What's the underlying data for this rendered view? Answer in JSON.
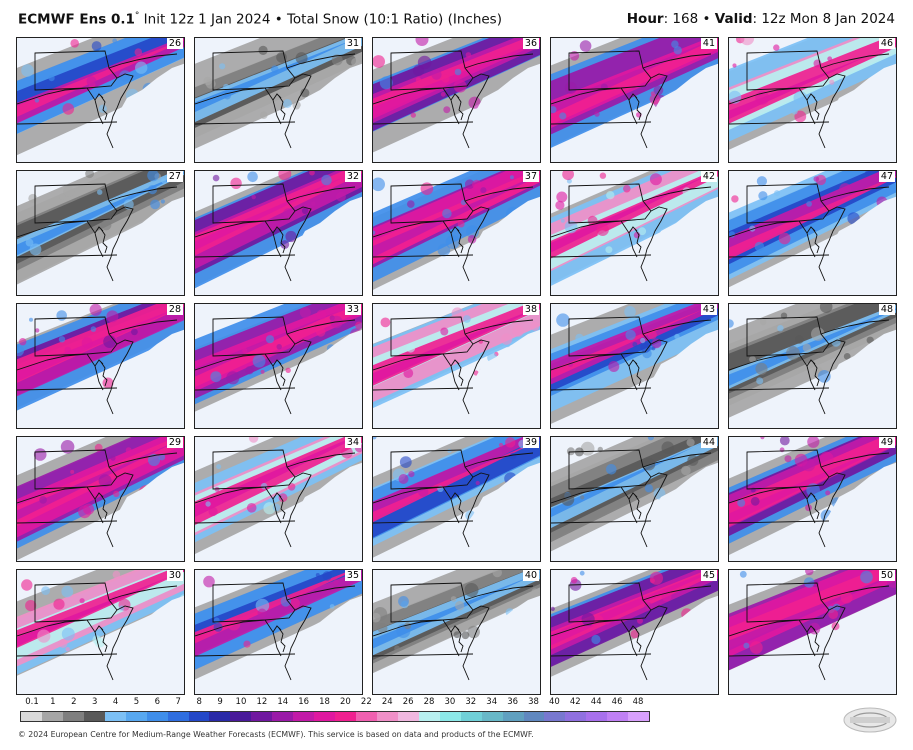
{
  "header": {
    "model": "ECMWF Ens 0.1",
    "degree": "°",
    "init": " Init 12z 1 Jan 2024 • Total Snow (10:1 Ratio) (Inches)",
    "hour_label": "Hour",
    "hour_value": ": 168 • ",
    "valid_label": "Valid",
    "valid_value": ": 12z Mon 8 Jan 2024"
  },
  "panels": [
    {
      "member": "26"
    },
    {
      "member": "31"
    },
    {
      "member": "36"
    },
    {
      "member": "41"
    },
    {
      "member": "46"
    },
    {
      "member": "27"
    },
    {
      "member": "32"
    },
    {
      "member": "37"
    },
    {
      "member": "42"
    },
    {
      "member": "47"
    },
    {
      "member": "28"
    },
    {
      "member": "33"
    },
    {
      "member": "38"
    },
    {
      "member": "43"
    },
    {
      "member": "48"
    },
    {
      "member": "29"
    },
    {
      "member": "34"
    },
    {
      "member": "39"
    },
    {
      "member": "44"
    },
    {
      "member": "49"
    },
    {
      "member": "30"
    },
    {
      "member": "35"
    },
    {
      "member": "40"
    },
    {
      "member": "45"
    },
    {
      "member": "50"
    }
  ],
  "legend": {
    "ticks": [
      "0.1",
      "1",
      "2",
      "3",
      "4",
      "5",
      "6",
      "7",
      "8",
      "9",
      "10",
      "12",
      "14",
      "16",
      "18",
      "20",
      "22",
      "24",
      "26",
      "28",
      "30",
      "32",
      "34",
      "36",
      "38",
      "40",
      "42",
      "44",
      "46",
      "48"
    ],
    "colors": [
      "#d9d9d9",
      "#a6a6a6",
      "#7f7f7f",
      "#595959",
      "#7cc0f5",
      "#58a8f0",
      "#3f8eea",
      "#2f6ee0",
      "#2448c8",
      "#2a2aa8",
      "#4a1a9a",
      "#7018a0",
      "#9a1aa8",
      "#c21aa8",
      "#e018a0",
      "#f02090",
      "#f060b0",
      "#f090c8",
      "#f0b8e0",
      "#b8f0f0",
      "#8ce8e8",
      "#70d0d8",
      "#68b8c8",
      "#60a0c0",
      "#6088c0",
      "#7878d0",
      "#9070e0",
      "#a870ec",
      "#c080f4",
      "#d8a0fc"
    ]
  },
  "footer": {
    "copyright": "© 2024 European Centre for Medium-Range Weather Forecasts (ECMWF). This service is based on data and products of the ECMWF."
  },
  "logo": {
    "icon": "weatherbell-logo"
  }
}
